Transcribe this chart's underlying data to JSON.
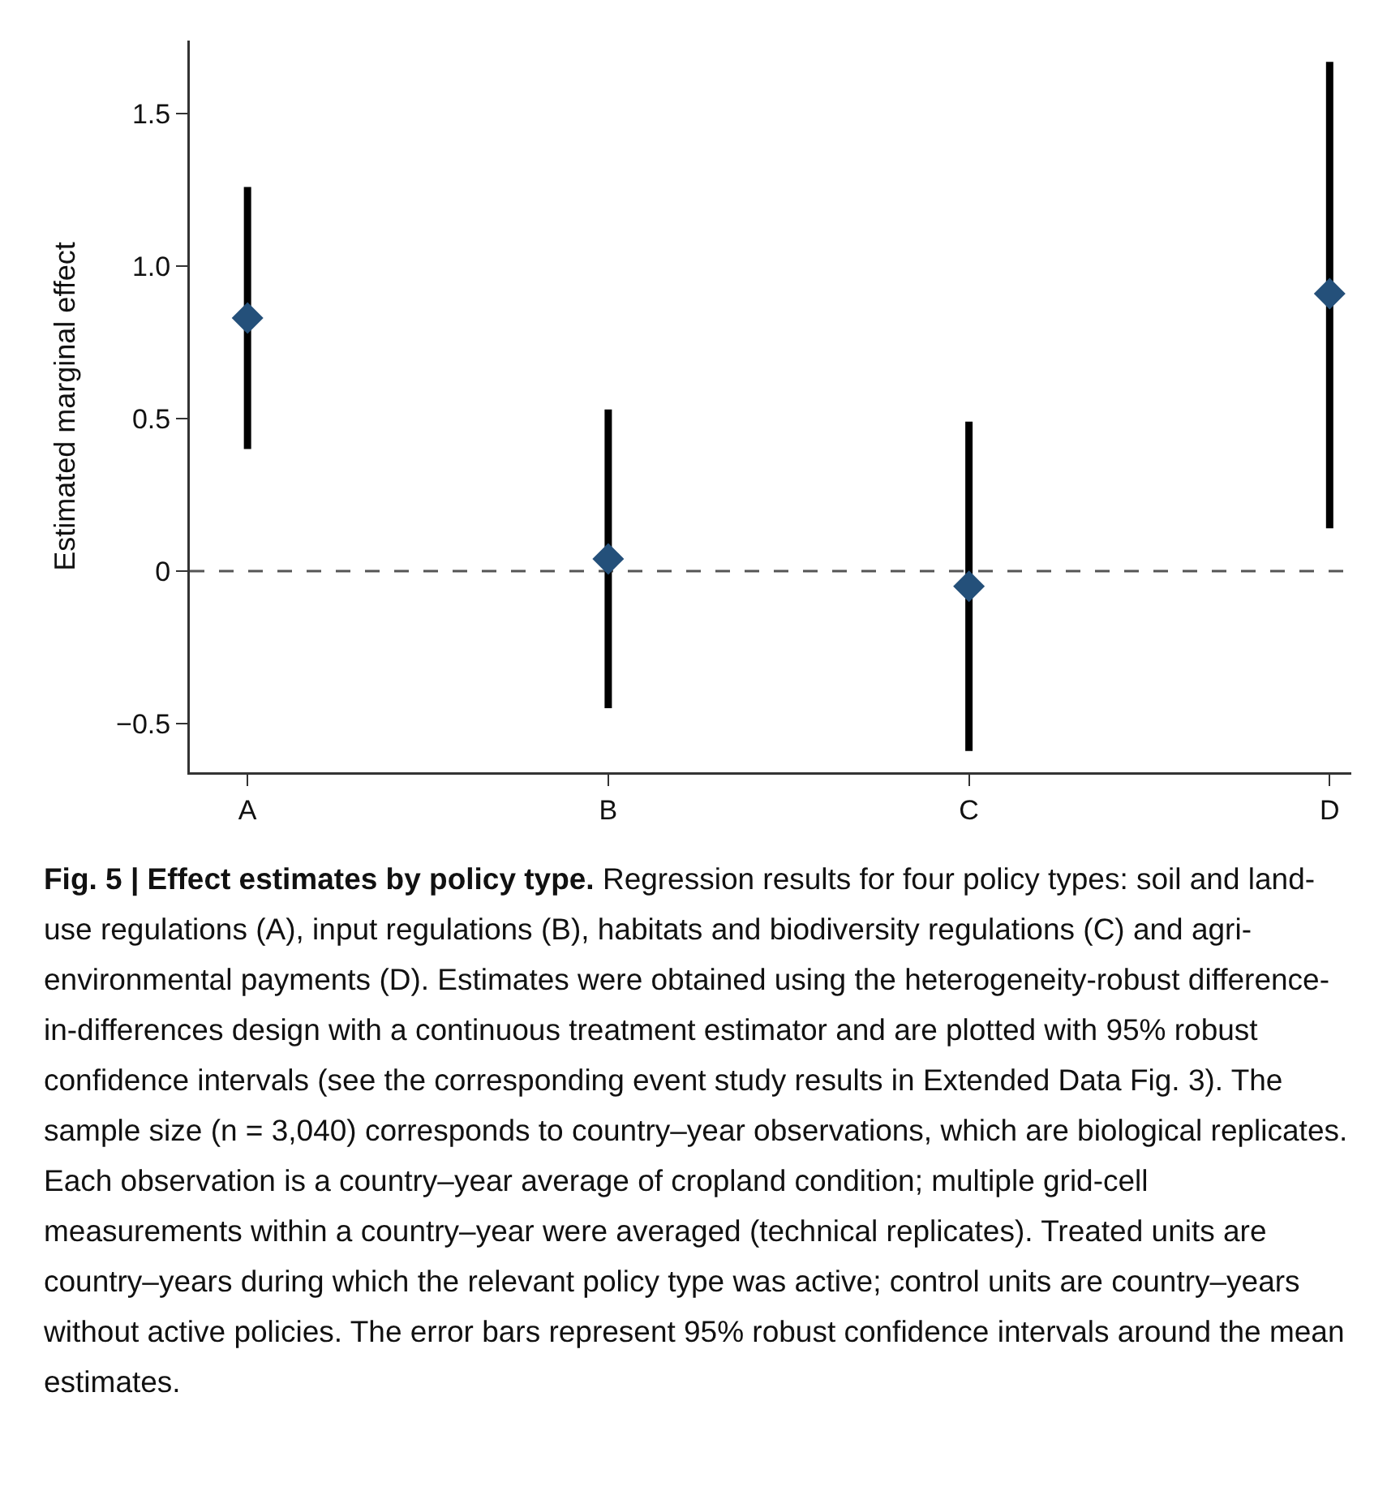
{
  "chart_data": {
    "type": "scatter",
    "title": "Fig. 5 | Effect estimates by policy type.",
    "ylabel": "Estimated marginal effect",
    "categories": [
      "A",
      "B",
      "C",
      "D"
    ],
    "values": [
      0.83,
      0.04,
      -0.05,
      0.91
    ],
    "errors": [
      [
        0.4,
        1.26
      ],
      [
        -0.45,
        0.53
      ],
      [
        -0.59,
        0.49
      ],
      [
        0.14,
        1.67
      ]
    ],
    "color": "#24507a",
    "marker": "diamond",
    "ylim": [
      -0.66,
      1.74
    ],
    "yticks": [
      {
        "value": -0.5,
        "label": "−0.5"
      },
      0,
      0.5,
      {
        "value": 1,
        "label": "1.0"
      },
      1.5
    ],
    "grid": false,
    "ref_lines": [
      {
        "axis": "y",
        "value": 0,
        "color": "#555555",
        "line_style": "dashed"
      }
    ],
    "annotations": [
      "Regression results for four policy types: soil and land-use regulations (A), input regulations (B), habitats and biodiversity regulations (C) and agri-environmental payments (D). Estimates were obtained using the heterogeneity-robust difference-in-differences design with a continuous treatment estimator and are plotted with 95% robust confidence intervals (see the corresponding event study results in Extended Data Fig. 3). The sample size (n = 3,040) corresponds to country–year observations, which are biological replicates. Each observation is a country–year average of cropland condition; multiple grid-cell measurements within a country–year were averaged (technical replicates). Treated units are country–years during which the relevant policy type was active; control units are country–years without active policies. The error bars represent 95% robust confidence intervals around the mean estimates."
    ]
  }
}
